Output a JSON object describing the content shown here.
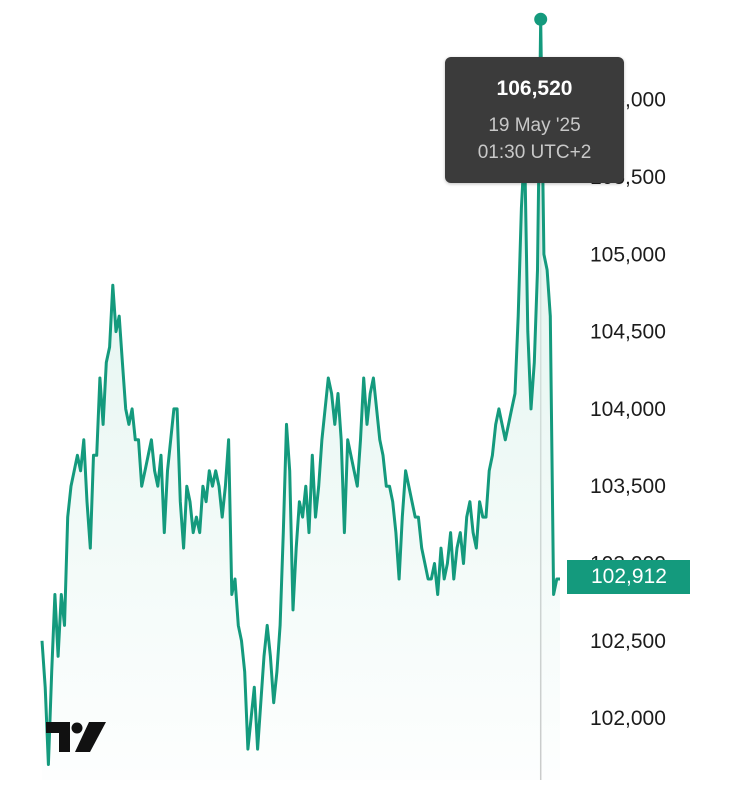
{
  "chart_data": {
    "type": "area",
    "y_axis": {
      "ticks": [
        102000,
        102500,
        103000,
        103500,
        104000,
        104500,
        105000,
        105500,
        106000
      ],
      "tick_labels": [
        "102,000",
        "102,500",
        "103,000",
        "103,500",
        "104,000",
        "104,500",
        "105,000",
        "105,500",
        "106,000"
      ],
      "range": [
        101600,
        106580
      ],
      "position": "right"
    },
    "grid": false,
    "series": [
      {
        "values": [
          102500,
          102200,
          101700,
          102300,
          102800,
          102400,
          102800,
          102600,
          103300,
          103500,
          103600,
          103700,
          103600,
          103800,
          103400,
          103100,
          103700,
          103700,
          104200,
          103900,
          104300,
          104400,
          104800,
          104500,
          104600,
          104300,
          104000,
          103900,
          104000,
          103800,
          103800,
          103500,
          103600,
          103700,
          103800,
          103600,
          103500,
          103700,
          103200,
          103600,
          103800,
          104000,
          104000,
          103400,
          103100,
          103500,
          103400,
          103200,
          103300,
          103200,
          103500,
          103400,
          103600,
          103500,
          103600,
          103500,
          103300,
          103500,
          103800,
          102800,
          102900,
          102600,
          102500,
          102300,
          101800,
          102000,
          102200,
          101800,
          102100,
          102400,
          102600,
          102400,
          102100,
          102300,
          102600,
          103200,
          103900,
          103600,
          102700,
          103100,
          103400,
          103300,
          103500,
          103200,
          103700,
          103300,
          103500,
          103800,
          104000,
          104200,
          104100,
          103900,
          104100,
          103800,
          103200,
          103800,
          103700,
          103600,
          103500,
          103800,
          104200,
          103900,
          104100,
          104200,
          104000,
          103800,
          103700,
          103500,
          103500,
          103400,
          103200,
          102900,
          103300,
          103600,
          103500,
          103400,
          103300,
          103300,
          103100,
          103000,
          102900,
          102900,
          103000,
          102800,
          103100,
          102900,
          103000,
          103200,
          102900,
          103100,
          103200,
          103000,
          103300,
          103400,
          103200,
          103100,
          103400,
          103300,
          103300,
          103600,
          103700,
          103900,
          104000,
          103900,
          103800,
          103900,
          104000,
          104100,
          104600,
          105300,
          105700,
          104500,
          104000,
          104300,
          104900,
          106520,
          105000,
          104900,
          104600,
          102800,
          102900,
          102900
        ],
        "color": "#149a7d"
      }
    ],
    "current_value": 102912,
    "current_value_label": "102,912",
    "tooltip": {
      "value": "106,520",
      "date": "19 May '25",
      "time": "01:30 UTC+2",
      "point_index": 155
    }
  },
  "colors": {
    "line": "#149a7d",
    "fill_top": "#d9f1ea",
    "badge": "#149a7d",
    "tooltip_bg": "#3b3b3b",
    "crosshair": "#c9c9c9"
  },
  "logo": {
    "name": "tradingview-logo",
    "text": "TV"
  }
}
